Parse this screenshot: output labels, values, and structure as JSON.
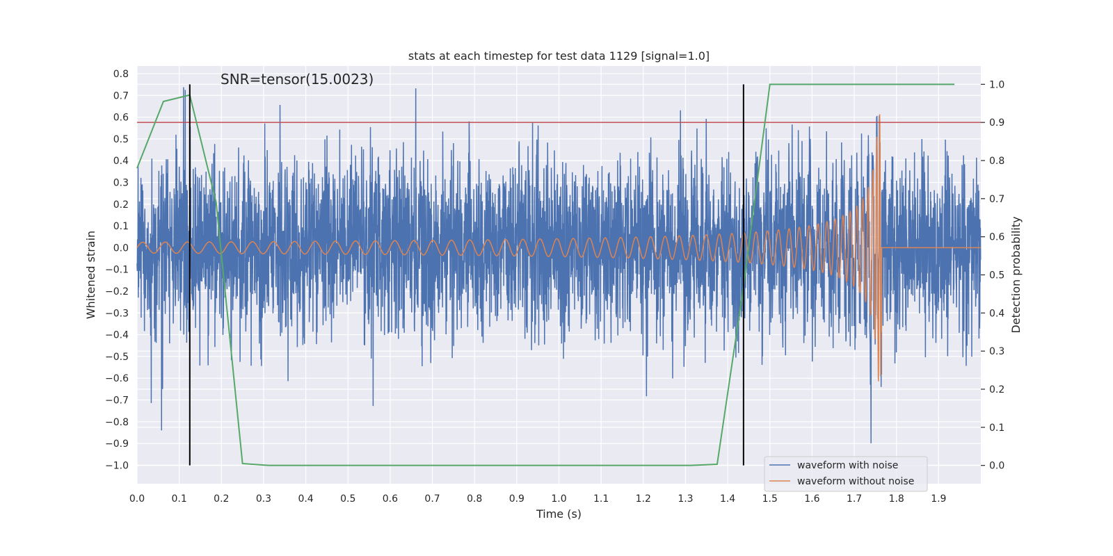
{
  "chart_data": {
    "type": "line",
    "title": "stats at each timestep for test data 1129 [signal=1.0]",
    "annotation": "SNR=tensor(15.0023)",
    "xlabel": "Time (s)",
    "ylabel_left": "Whitened strain",
    "ylabel_right": "Detection probability",
    "xlim": [
      0.0,
      2.0
    ],
    "ylim_left": [
      -1.085,
      0.835
    ],
    "ylim_right": [
      -0.048,
      1.048
    ],
    "x_ticks": [
      0.0,
      0.1,
      0.2,
      0.3,
      0.4,
      0.5,
      0.6,
      0.7,
      0.8,
      0.9,
      1.0,
      1.1,
      1.2,
      1.3,
      1.4,
      1.5,
      1.6,
      1.7,
      1.8,
      1.9
    ],
    "x_tick_labels": [
      "0.0",
      "0.1",
      "0.2",
      "0.3",
      "0.4",
      "0.5",
      "0.6",
      "0.7",
      "0.8",
      "0.9",
      "1.0",
      "1.1",
      "1.2",
      "1.3",
      "1.4",
      "1.5",
      "1.6",
      "1.7",
      "1.8",
      "1.9"
    ],
    "y_ticks_left": [
      0.8,
      0.7,
      0.6,
      0.5,
      0.4,
      0.3,
      0.2,
      0.1,
      0.0,
      -0.1,
      -0.2,
      -0.3,
      -0.4,
      -0.5,
      -0.6,
      -0.7,
      -0.8,
      -0.9,
      -1.0
    ],
    "y_tick_labels_left": [
      "0.8",
      "0.7",
      "0.6",
      "0.5",
      "0.4",
      "0.3",
      "0.2",
      "0.1",
      "0.0",
      "−0.1",
      "−0.2",
      "−0.3",
      "−0.4",
      "−0.5",
      "−0.6",
      "−0.7",
      "−0.8",
      "−0.9",
      "−1.0"
    ],
    "y_ticks_right": [
      1.0,
      0.9,
      0.8,
      0.7,
      0.6,
      0.5,
      0.4,
      0.3,
      0.2,
      0.1,
      0.0
    ],
    "y_tick_labels_right": [
      "1.0",
      "0.9",
      "0.8",
      "0.7",
      "0.6",
      "0.5",
      "0.4",
      "0.3",
      "0.2",
      "0.1",
      "0.0"
    ],
    "grid": true,
    "legend_position": "lower-right",
    "series": [
      {
        "name": "waveform with noise",
        "color": "#4c72b0",
        "axis": "left",
        "kind": "noisy-strain",
        "sample_rate": 2048,
        "noise_std": 0.2
      },
      {
        "name": "waveform without noise",
        "color": "#dd8452",
        "axis": "left",
        "kind": "chirp",
        "merger_time": 1.765,
        "start_amplitude": 0.025,
        "peak_amplitude": 0.62
      },
      {
        "color": "#55a868",
        "axis": "right",
        "kind": "probability",
        "x": [
          0.0,
          0.0625,
          0.125,
          0.1875,
          0.25,
          0.3125,
          0.375,
          0.4375,
          0.5,
          0.5625,
          0.625,
          0.6875,
          0.75,
          0.8125,
          0.875,
          0.9375,
          1.0,
          1.0625,
          1.125,
          1.1875,
          1.25,
          1.3125,
          1.375,
          1.4375,
          1.5,
          1.5625,
          1.625,
          1.6875,
          1.75,
          1.8125,
          1.875,
          1.9375
        ],
        "y": [
          0.78,
          0.955,
          0.972,
          0.69,
          0.005,
          0.0,
          0.0,
          0.0,
          0.0,
          0.0,
          0.0,
          0.0,
          0.0,
          0.0,
          0.0,
          0.0,
          0.0,
          0.0,
          0.0,
          0.0,
          0.0,
          0.0,
          0.003,
          0.47,
          1.0,
          1.0,
          1.0,
          1.0,
          1.0,
          1.0,
          1.0,
          1.0
        ]
      }
    ],
    "threshold_line": {
      "axis": "right",
      "value": 0.9,
      "color": "#c44e52"
    },
    "vertical_lines": [
      {
        "x": 0.125,
        "ymin": 0.0,
        "ymax": 1.0,
        "color": "#000000"
      },
      {
        "x": 1.4375,
        "ymin": 0.0,
        "ymax": 1.0,
        "color": "#000000"
      }
    ]
  }
}
